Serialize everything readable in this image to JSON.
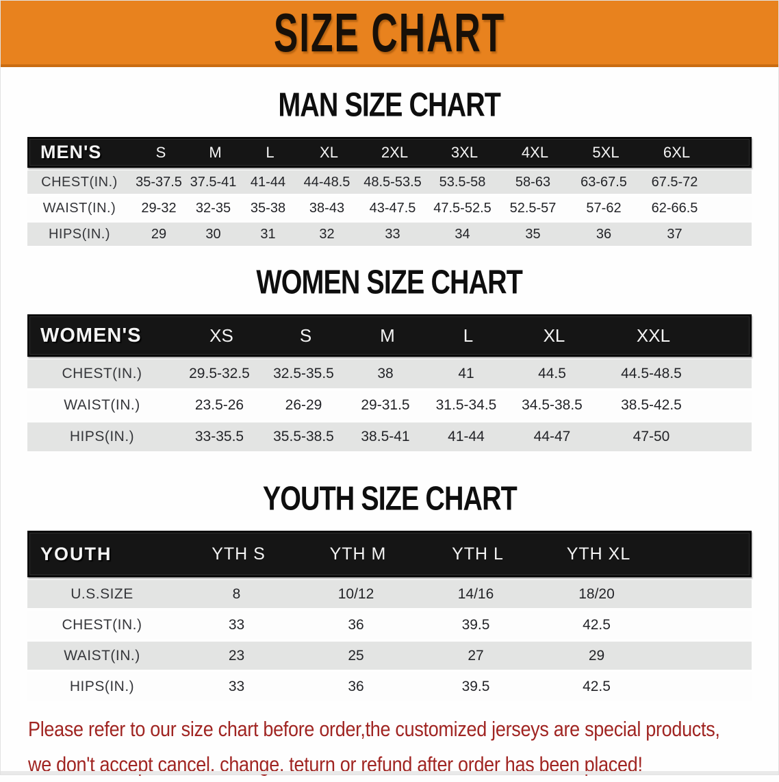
{
  "banner": {
    "title": "SIZE CHART",
    "background": "#e8821e",
    "text_color": "#181008"
  },
  "tables": [
    {
      "id": "men",
      "heading": "MAN SIZE CHART",
      "header": {
        "label": "MEN'S",
        "sizes": [
          "S",
          "M",
          "L",
          "XL",
          "2XL",
          "3XL",
          "4XL",
          "5XL",
          "6XL"
        ]
      },
      "rows": [
        {
          "label": "CHEST(IN.)",
          "values": [
            "35-37.5",
            "37.5-41",
            "41-44",
            "44-48.5",
            "48.5-53.5",
            "53.5-58",
            "58-63",
            "63-67.5",
            "67.5-72"
          ]
        },
        {
          "label": "WAIST(IN.)",
          "values": [
            "29-32",
            "32-35",
            "35-38",
            "38-43",
            "43-47.5",
            "47.5-52.5",
            "52.5-57",
            "57-62",
            "62-66.5"
          ]
        },
        {
          "label": "HIPS(IN.)",
          "values": [
            "29",
            "30",
            "31",
            "32",
            "33",
            "34",
            "35",
            "36",
            "37"
          ]
        }
      ]
    },
    {
      "id": "women",
      "heading": "WOMEN SIZE CHART",
      "header": {
        "label": "WOMEN'S",
        "sizes": [
          "XS",
          "S",
          "M",
          "L",
          "XL",
          "XXL"
        ]
      },
      "rows": [
        {
          "label": "CHEST(IN.)",
          "values": [
            "29.5-32.5",
            "32.5-35.5",
            "38",
            "41",
            "44.5",
            "44.5-48.5"
          ]
        },
        {
          "label": "WAIST(IN.)",
          "values": [
            "23.5-26",
            "26-29",
            "29-31.5",
            "31.5-34.5",
            "34.5-38.5",
            "38.5-42.5"
          ]
        },
        {
          "label": "HIPS(IN.)",
          "values": [
            "33-35.5",
            "35.5-38.5",
            "38.5-41",
            "41-44",
            "44-47",
            "47-50"
          ]
        }
      ]
    },
    {
      "id": "youth",
      "heading": "YOUTH SIZE CHART",
      "header": {
        "label": "YOUTH",
        "sizes": [
          "YTH S",
          "YTH M",
          "YTH L",
          "YTH XL"
        ]
      },
      "rows": [
        {
          "label": "U.S.SIZE",
          "values": [
            "8",
            "10/12",
            "14/16",
            "18/20"
          ]
        },
        {
          "label": "CHEST(IN.)",
          "values": [
            "33",
            "36",
            "39.5",
            "42.5"
          ]
        },
        {
          "label": "WAIST(IN.)",
          "values": [
            "23",
            "25",
            "27",
            "29"
          ]
        },
        {
          "label": "HIPS(IN.)",
          "values": [
            "33",
            "36",
            "39.5",
            "42.5"
          ]
        }
      ]
    }
  ],
  "note": {
    "color": "#a02522",
    "line1": "Please refer to our size chart before order,the customized jerseys are special products,",
    "line2": "we don't accept cancel, change, teturn or refund after order has been placed!"
  },
  "colors": {
    "header_bar": "#151515",
    "row_stripe": "#e3e4e3"
  }
}
